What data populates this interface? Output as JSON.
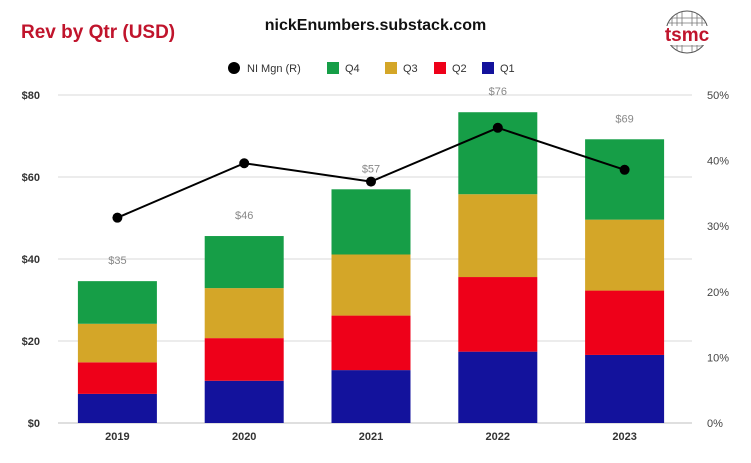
{
  "header": {
    "title": "Rev by Qtr (USD)",
    "source": "nickEnumbers.substack.com",
    "logo_text": "tsmc",
    "logo_color": "#c0142c"
  },
  "chart_data": {
    "type": "bar",
    "stacked": true,
    "categories": [
      "2019",
      "2020",
      "2021",
      "2022",
      "2023"
    ],
    "series": [
      {
        "name": "Q1",
        "color": "#13129c",
        "values": [
          7.1,
          10.3,
          12.9,
          17.4,
          16.6
        ]
      },
      {
        "name": "Q2",
        "color": "#ee0019",
        "values": [
          7.7,
          10.4,
          13.3,
          18.2,
          15.7
        ]
      },
      {
        "name": "Q3",
        "color": "#d4a628",
        "values": [
          9.4,
          12.2,
          14.9,
          20.2,
          17.3
        ]
      },
      {
        "name": "Q4",
        "color": "#169e47",
        "values": [
          10.4,
          12.7,
          15.9,
          20.0,
          19.6
        ]
      }
    ],
    "totals": [
      35,
      46,
      57,
      76,
      69
    ],
    "total_labels": [
      "$35",
      "$46",
      "$57",
      "$76",
      "$69"
    ],
    "line_series": {
      "name": "NI Mgn (R)",
      "color": "#000000",
      "axis": "right",
      "values": [
        31.3,
        39.6,
        36.8,
        45.0,
        38.6
      ]
    },
    "left_axis": {
      "ylim": [
        0,
        80
      ],
      "ticks": [
        0,
        20,
        40,
        60,
        80
      ],
      "tick_labels": [
        "$0",
        "$20",
        "$40",
        "$60",
        "$80"
      ]
    },
    "right_axis": {
      "ylim": [
        0,
        50
      ],
      "ticks": [
        0,
        10,
        20,
        30,
        40,
        50
      ],
      "tick_labels": [
        "0%",
        "10%",
        "20%",
        "30%",
        "40%",
        "50%"
      ]
    },
    "legend_order": [
      "NI Mgn (R)",
      "Q4",
      "Q3",
      "Q2",
      "Q1"
    ],
    "legend_position": "top-center",
    "grid": true
  }
}
